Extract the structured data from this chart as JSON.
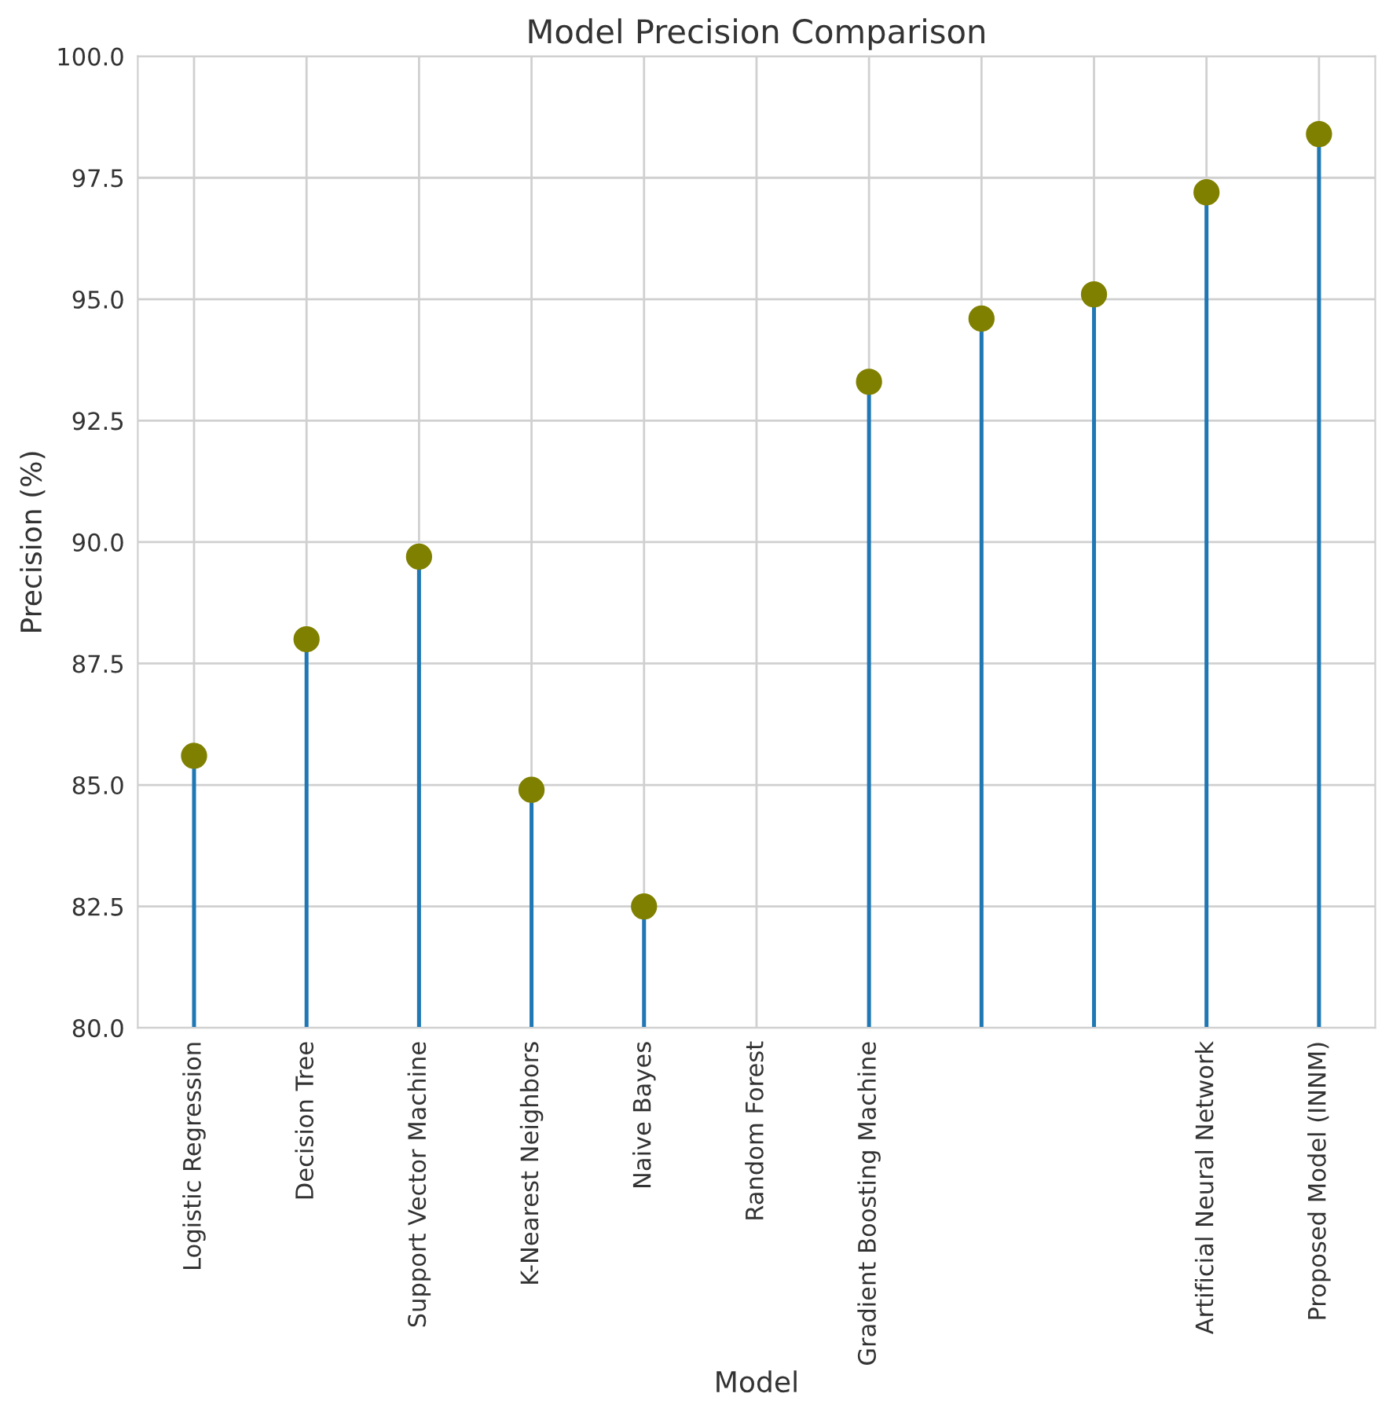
{
  "chart_data": {
    "type": "lollipop",
    "title": "Model Precision Comparison",
    "xlabel": "Model",
    "ylabel": "Precision (%)",
    "categories": [
      "Logistic Regression",
      "Decision Tree",
      "Support Vector Machine",
      "K-Nearest Neighbors",
      "Naive Bayes",
      "Random Forest",
      "Gradient Boosting Machine",
      null,
      null,
      "Artificial Neural Network",
      "Proposed Model (INNM)"
    ],
    "series": [
      {
        "color": "#808000",
        "values": [
          85.6,
          88.0,
          89.7,
          84.9,
          82.5,
          null,
          93.3,
          94.6,
          95.1,
          97.2,
          98.4
        ]
      }
    ],
    "ylim": [
      80,
      100
    ],
    "yticks": [
      {
        "value": 80,
        "label": "80.0"
      },
      {
        "value": 82.5,
        "label": "82.5"
      },
      {
        "value": 85,
        "label": "85.0"
      },
      {
        "value": 87.5,
        "label": "87.5"
      },
      {
        "value": 90,
        "label": "90.0"
      },
      {
        "value": 92.5,
        "label": "92.5"
      },
      {
        "value": 95,
        "label": "95.0"
      },
      {
        "value": 97.5,
        "label": "97.5"
      },
      {
        "value": 100,
        "label": "100.0"
      }
    ],
    "grid": true,
    "marker": "circle"
  }
}
